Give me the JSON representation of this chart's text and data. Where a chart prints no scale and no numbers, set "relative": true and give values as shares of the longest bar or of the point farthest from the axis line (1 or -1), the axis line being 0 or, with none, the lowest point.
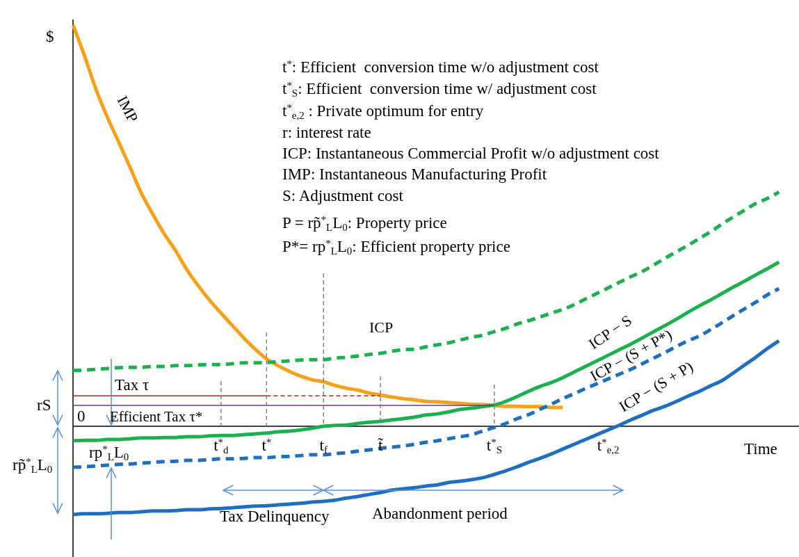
{
  "chart_data": {
    "type": "line",
    "relative": true,
    "ylabel": "$",
    "xlabel": "Time",
    "categories": [
      null,
      null,
      null,
      null,
      null,
      null,
      null,
      null,
      null,
      null,
      null,
      null,
      null,
      "t$^{*}$$_{d}$",
      null,
      null,
      null,
      "t$^{*}$",
      null,
      null,
      null,
      null,
      "t$_{f}$",
      null,
      null,
      null,
      null,
      "t̃",
      null,
      null,
      null,
      null,
      null,
      null,
      null,
      null,
      null,
      "t$^{*}$$_{S}$",
      null,
      null,
      null,
      null,
      null,
      null,
      null,
      null,
      null,
      "t$^{*}$$_{e,2}$",
      null,
      null,
      null,
      null,
      null,
      null,
      null,
      null,
      null,
      null,
      null,
      null,
      null,
      null,
      null,
      null,
      null
    ],
    "series": [
      {
        "name": "IMP",
        "color": "#f7a11a",
        "line_style": "solid",
        "values": [
          1,
          0.924,
          0.841,
          0.771,
          0.709,
          0.646,
          0.581,
          0.529,
          0.48,
          0.438,
          0.39,
          0.35,
          0.314,
          0.282,
          0.251,
          0.22,
          0.192,
          0.168,
          0.151,
          0.137,
          0.125,
          0.116,
          0.111,
          0.102,
          0.095,
          0.09,
          0.083,
          0.078,
          0.073,
          0.069,
          0.066,
          0.062,
          0.061,
          0.059,
          0.057,
          0.055,
          0.054,
          0.052,
          0.05,
          0.05,
          0.049,
          0.049,
          0.047,
          0.047,
          null,
          null,
          null,
          null,
          null,
          null,
          null,
          null,
          null,
          null,
          null,
          null,
          null,
          null,
          null,
          null,
          null,
          null,
          null,
          null,
          null
        ]
      },
      {
        "name": "ICP",
        "color": "#1db04f",
        "line_style": "dashed",
        "values": [
          0.139,
          0.14,
          0.142,
          0.144,
          0.146,
          0.147,
          0.147,
          0.149,
          0.149,
          0.151,
          0.151,
          0.153,
          0.154,
          0.154,
          0.156,
          0.158,
          0.158,
          0.159,
          0.161,
          0.163,
          0.165,
          0.166,
          0.166,
          0.17,
          0.172,
          0.175,
          0.179,
          0.182,
          0.187,
          0.191,
          0.192,
          0.198,
          0.203,
          0.208,
          0.215,
          0.222,
          0.227,
          0.236,
          0.244,
          0.255,
          0.263,
          0.272,
          0.282,
          0.291,
          0.303,
          0.317,
          0.331,
          0.345,
          0.359,
          0.373,
          0.386,
          0.402,
          0.419,
          0.435,
          0.451,
          0.468,
          0.485,
          0.504,
          0.522,
          0.539,
          0.556,
          0.568,
          0.584,
          null,
          null
        ]
      },
      {
        "name": "ICP − S",
        "color": "#1db04f",
        "line_style": "solid",
        "values": [
          -0.036,
          -0.035,
          -0.035,
          -0.033,
          -0.033,
          -0.031,
          -0.029,
          -0.029,
          -0.028,
          -0.028,
          -0.026,
          -0.026,
          -0.024,
          -0.023,
          -0.023,
          -0.021,
          -0.019,
          -0.017,
          -0.014,
          -0.012,
          -0.009,
          -0.005,
          0,
          0.002,
          0.003,
          0.007,
          0.01,
          0.012,
          0.016,
          0.019,
          0.023,
          0.028,
          0.031,
          0.036,
          0.042,
          0.045,
          0.049,
          0.053,
          0.062,
          0.074,
          0.087,
          0.099,
          0.109,
          0.121,
          0.135,
          0.149,
          0.163,
          0.177,
          0.191,
          0.205,
          0.22,
          0.236,
          0.251,
          0.267,
          0.284,
          0.3,
          0.315,
          0.331,
          0.347,
          0.362,
          0.378,
          0.393,
          0.409,
          null,
          null
        ]
      },
      {
        "name": "ICP − (S + P*)",
        "color": "#1f6fc0",
        "line_style": "dashed",
        "values": [
          -0.102,
          -0.101,
          -0.099,
          -0.097,
          -0.095,
          -0.094,
          -0.092,
          -0.09,
          -0.088,
          -0.087,
          -0.085,
          -0.085,
          -0.083,
          -0.081,
          -0.081,
          -0.08,
          -0.078,
          -0.078,
          -0.076,
          -0.075,
          -0.073,
          -0.071,
          -0.071,
          -0.068,
          -0.066,
          -0.062,
          -0.059,
          -0.055,
          -0.052,
          -0.049,
          -0.045,
          -0.04,
          -0.036,
          -0.031,
          -0.026,
          -0.021,
          -0.012,
          -0.003,
          0.007,
          0.019,
          0.029,
          0.042,
          0.055,
          0.069,
          0.081,
          0.094,
          0.106,
          0.118,
          0.13,
          0.142,
          0.156,
          0.17,
          0.184,
          0.199,
          0.213,
          0.225,
          0.241,
          0.258,
          0.276,
          0.293,
          0.31,
          0.328,
          0.343,
          null,
          null
        ]
      },
      {
        "name": "ICP − (S + P)",
        "color": "#1f6fc0",
        "line_style": "solid",
        "values": [
          -0.22,
          -0.218,
          -0.218,
          -0.217,
          -0.215,
          -0.215,
          -0.213,
          -0.211,
          -0.211,
          -0.21,
          -0.208,
          -0.208,
          -0.206,
          -0.205,
          -0.203,
          -0.201,
          -0.199,
          -0.198,
          -0.196,
          -0.194,
          -0.192,
          -0.189,
          -0.187,
          -0.184,
          -0.179,
          -0.175,
          -0.17,
          -0.165,
          -0.159,
          -0.156,
          -0.153,
          -0.149,
          -0.146,
          -0.14,
          -0.137,
          -0.133,
          -0.128,
          -0.12,
          -0.111,
          -0.101,
          -0.09,
          -0.08,
          -0.069,
          -0.057,
          -0.045,
          -0.033,
          -0.021,
          -0.009,
          0.003,
          0.016,
          0.028,
          0.04,
          0.05,
          0.062,
          0.075,
          0.087,
          0.101,
          0.114,
          0.133,
          0.153,
          0.173,
          0.194,
          0.213,
          null,
          null
        ]
      },
      {
        "color": "#ff0000",
        "line_style": "solid",
        "values": [
          0.076,
          0.076,
          0.076,
          0.076,
          0.076,
          0.076,
          0.076,
          0.076,
          0.076,
          0.076,
          0.076,
          0.076,
          0.076,
          0.076,
          0.076,
          0.076,
          0.076,
          0.076,
          null,
          null,
          null,
          null,
          null,
          null,
          null,
          null,
          null,
          null,
          null,
          null,
          null,
          null,
          null,
          null,
          null,
          null,
          null,
          null,
          null,
          null,
          null,
          null,
          null,
          null,
          null,
          null,
          null,
          null,
          null,
          null,
          null,
          null,
          null,
          null,
          null,
          null,
          null,
          null,
          null,
          null,
          null,
          null,
          null,
          null,
          null
        ]
      },
      {
        "color": "#ff0000",
        "line_style": "dashed",
        "values": [
          null,
          null,
          null,
          null,
          null,
          null,
          null,
          null,
          null,
          null,
          null,
          null,
          null,
          null,
          null,
          null,
          null,
          0.076,
          0.076,
          0.076,
          0.076,
          0.076,
          0.076,
          0.076,
          0.076,
          0.076,
          0.076,
          0.076,
          null,
          null,
          null,
          null,
          null,
          null,
          null,
          null,
          null,
          null,
          null,
          null,
          null,
          null,
          null,
          null,
          null,
          null,
          null,
          null,
          null,
          null,
          null,
          null,
          null,
          null,
          null,
          null,
          null,
          null,
          null,
          null,
          null,
          null,
          null,
          null,
          null
        ]
      },
      {
        "color": "#7030a0",
        "line_style": "solid",
        "values": [
          0.052,
          0.052,
          0.052,
          0.052,
          0.052,
          0.052,
          0.052,
          0.052,
          0.052,
          0.052,
          0.052,
          0.052,
          0.052,
          0.052,
          0.052,
          0.052,
          0.052,
          0.052,
          0.052,
          0.052,
          0.052,
          0.052,
          0.052,
          0.052,
          0.052,
          0.052,
          0.052,
          0.052,
          0.052,
          0.052,
          0.052,
          0.052,
          0.052,
          0.052,
          0.052,
          0.052,
          0.052,
          0.052,
          null,
          null,
          null,
          null,
          null,
          null,
          null,
          null,
          null,
          null,
          null,
          null,
          null,
          null,
          null,
          null,
          null,
          null,
          null,
          null,
          null,
          null,
          null,
          null,
          null,
          null,
          null
        ]
      }
    ],
    "ref_lines": [
      {
        "axis": "x",
        "value": "t$^{*}$$_{d}$",
        "color": "#808080",
        "line_style": "dashed"
      },
      {
        "axis": "x",
        "value": "t$^{*}$",
        "color": "#808080",
        "line_style": "dashed"
      },
      {
        "axis": "x",
        "value": "t$_{f}$",
        "color": "#808080",
        "line_style": "dashed"
      },
      {
        "axis": "x",
        "value": "t̃",
        "color": "#808080",
        "line_style": "dashed"
      },
      {
        "axis": "x",
        "value": "t$^{*}$$_{S}$",
        "color": "#808080",
        "line_style": "dashed"
      }
    ],
    "annotations": [
      "t$^{*}$: Efficient  conversion time w/o adjustment cost",
      "t$^{*}$$_{S}$: Efficient  conversion time w/ adjustment cost",
      "t$^{*}$$_{e,2}$ : Private optimum for entry",
      "r: interest rate",
      "ICP: Instantaneous Commercial Profit w/o adjustment cost",
      "IMP: Instantaneous Manufacturing Profit",
      "S: Adjustment cost",
      "P = rp̃$^{*}$$_{L}$L$_{0}$: Property price",
      "P*= rp$^{*}$$_{L}$L$_{0}$: Efficient property price",
      "Tax τ",
      "Efficient Tax τ*",
      "0",
      "rS",
      "rp̃$^{*}$$_{L}$L$_{0}$",
      "rp$^{*}$$_{L}$L$_{0}$",
      "Tax Delinquency",
      "Abandonment period"
    ]
  }
}
